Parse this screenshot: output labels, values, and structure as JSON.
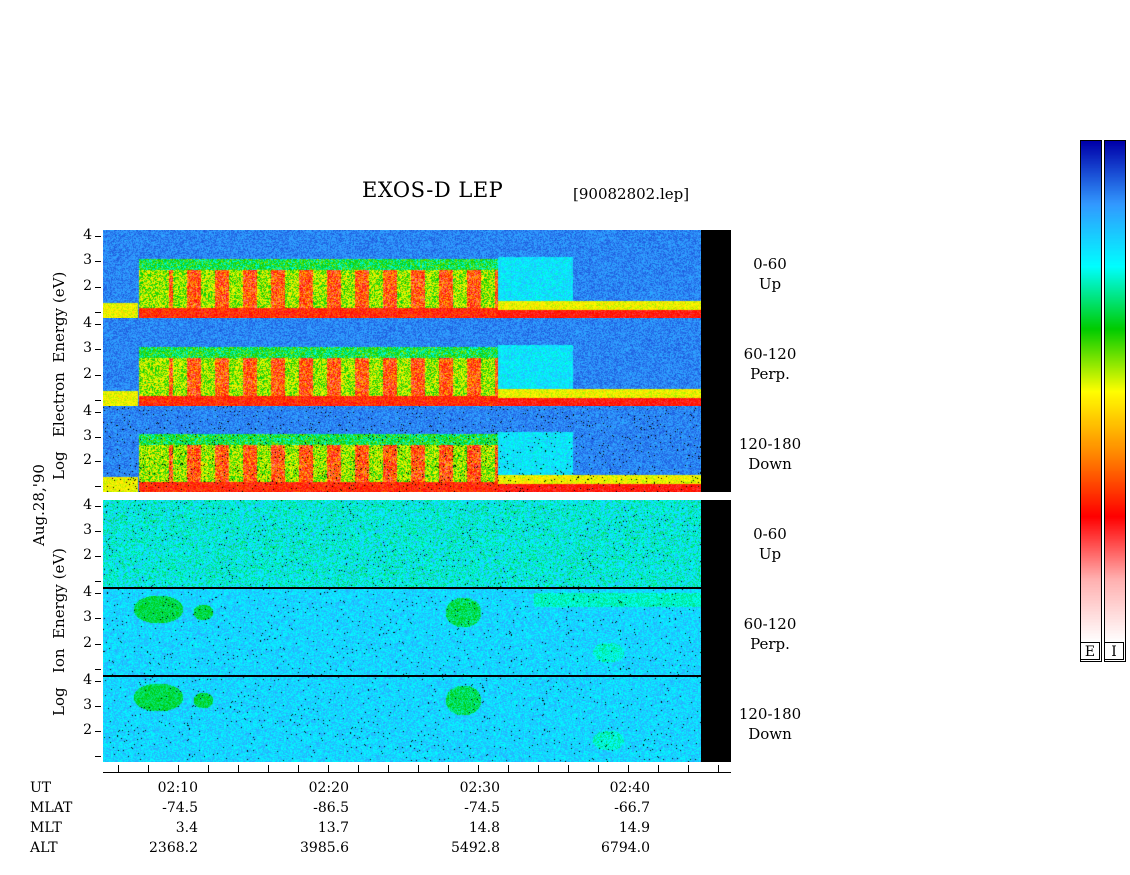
{
  "header": {
    "title": "EXOS-D LEP",
    "file_id": "[90082802.lep]"
  },
  "chart_data": {
    "type": "heatmap",
    "title": "EXOS-D LEP",
    "date_label": "Aug.28,'90",
    "colorbar_labels": [
      "E",
      "I"
    ],
    "x_axis": {
      "tick_labels": [
        "02:10",
        "02:20",
        "02:30",
        "02:40"
      ],
      "rows": [
        {
          "name": "UT",
          "values": [
            "02:10",
            "02:20",
            "02:30",
            "02:40"
          ]
        },
        {
          "name": "MLAT",
          "values": [
            "-74.5",
            "-86.5",
            "-74.5",
            "-66.7"
          ]
        },
        {
          "name": "MLT",
          "values": [
            "3.4",
            "13.7",
            "14.8",
            "14.9"
          ]
        },
        {
          "name": "ALT",
          "values": [
            "2368.2",
            "3985.6",
            "5492.8",
            "6794.0"
          ]
        }
      ]
    },
    "groups": [
      {
        "ylabel_lines": [
          "Log",
          "Electron",
          "Energy",
          "(eV)"
        ],
        "y_ticks": [
          "4",
          "3",
          "2"
        ],
        "y_range": [
          1,
          4
        ],
        "panels": [
          {
            "angle": "0-60",
            "direction": "Up"
          },
          {
            "angle": "60-120",
            "direction": "Perp."
          },
          {
            "angle": "120-180",
            "direction": "Down"
          }
        ]
      },
      {
        "ylabel_lines": [
          "Log",
          "Ion",
          "Energy",
          "(eV)"
        ],
        "y_ticks": [
          "4",
          "3",
          "2"
        ],
        "y_range": [
          1,
          4
        ],
        "panels": [
          {
            "angle": "0-60",
            "direction": "Up"
          },
          {
            "angle": "60-120",
            "direction": "Perp."
          },
          {
            "angle": "120-180",
            "direction": "Down"
          }
        ]
      }
    ],
    "colorscale": [
      "#ffffff",
      "#ffb0b0",
      "#ff0000",
      "#ff8800",
      "#ffff00",
      "#00cc00",
      "#00ffff",
      "#3399ff",
      "#0000aa"
    ]
  }
}
